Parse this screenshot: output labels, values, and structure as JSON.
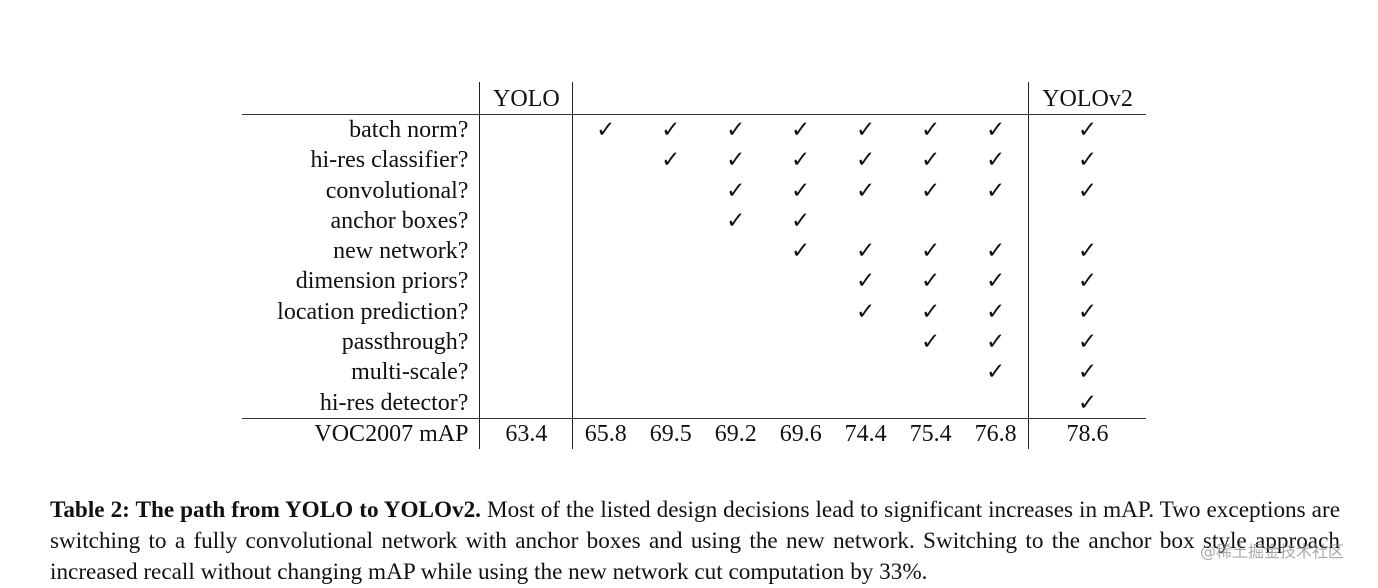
{
  "table": {
    "headers": {
      "baseline": "YOLO",
      "final": "YOLOv2"
    },
    "check_glyph": "✓",
    "rows": [
      {
        "label": "batch norm?",
        "yolo": "",
        "steps": [
          "✓",
          "✓",
          "✓",
          "✓",
          "✓",
          "✓",
          "✓"
        ],
        "yolov2": "✓"
      },
      {
        "label": "hi-res classifier?",
        "yolo": "",
        "steps": [
          "",
          "✓",
          "✓",
          "✓",
          "✓",
          "✓",
          "✓"
        ],
        "yolov2": "✓"
      },
      {
        "label": "convolutional?",
        "yolo": "",
        "steps": [
          "",
          "",
          "✓",
          "✓",
          "✓",
          "✓",
          "✓"
        ],
        "yolov2": "✓"
      },
      {
        "label": "anchor boxes?",
        "yolo": "",
        "steps": [
          "",
          "",
          "✓",
          "✓",
          "",
          "",
          ""
        ],
        "yolov2": ""
      },
      {
        "label": "new network?",
        "yolo": "",
        "steps": [
          "",
          "",
          "",
          "✓",
          "✓",
          "✓",
          "✓"
        ],
        "yolov2": "✓"
      },
      {
        "label": "dimension priors?",
        "yolo": "",
        "steps": [
          "",
          "",
          "",
          "",
          "✓",
          "✓",
          "✓"
        ],
        "yolov2": "✓"
      },
      {
        "label": "location prediction?",
        "yolo": "",
        "steps": [
          "",
          "",
          "",
          "",
          "✓",
          "✓",
          "✓"
        ],
        "yolov2": "✓"
      },
      {
        "label": "passthrough?",
        "yolo": "",
        "steps": [
          "",
          "",
          "",
          "",
          "",
          "✓",
          "✓"
        ],
        "yolov2": "✓"
      },
      {
        "label": "multi-scale?",
        "yolo": "",
        "steps": [
          "",
          "",
          "",
          "",
          "",
          "",
          "✓"
        ],
        "yolov2": "✓"
      },
      {
        "label": "hi-res detector?",
        "yolo": "",
        "steps": [
          "",
          "",
          "",
          "",
          "",
          "",
          ""
        ],
        "yolov2": "✓"
      }
    ],
    "result": {
      "label": "VOC2007 mAP",
      "yolo": "63.4",
      "steps": [
        "65.8",
        "69.5",
        "69.2",
        "69.6",
        "74.4",
        "75.4",
        "76.8"
      ],
      "yolov2": "78.6"
    }
  },
  "caption": {
    "label": "Table 2: The path from YOLO to YOLOv2.",
    "text": " Most of the listed design decisions lead to significant increases in mAP. Two exceptions are switching to a fully convolutional network with anchor boxes and using the new network.  Switching to the anchor box style approach increased recall without changing mAP while using the new network cut computation by 33%."
  },
  "watermark": "@稀土掘金技术社区"
}
